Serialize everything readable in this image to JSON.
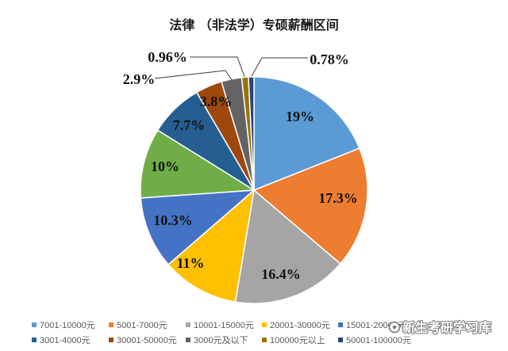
{
  "chart_data": {
    "type": "pie",
    "title": "法律 （非法学）专硕薪酬区间",
    "categories": [
      "7001-10000元",
      "5001-7000元",
      "10001-15000元",
      "20001-30000元",
      "15001-20000元",
      "",
      "3001-4000元",
      "30001-50000元",
      "3000元及以下",
      "100000元以上",
      "50001-100000元"
    ],
    "values": [
      19,
      17.3,
      16.4,
      11,
      10.3,
      10,
      7.7,
      3.8,
      2.9,
      0.96,
      0.78
    ],
    "data_labels": [
      "19%",
      "17.3%",
      "16.4%",
      "11%",
      "10.3%",
      "10%",
      "7.7%",
      "3.8%",
      "2.9%",
      "0.96%",
      "0.78%"
    ],
    "colors": [
      "#5B9BD5",
      "#ED7D31",
      "#A5A5A5",
      "#FFC000",
      "#4472C4",
      "#70AD47",
      "#255E91",
      "#9E480E",
      "#636363",
      "#997300",
      "#264478"
    ],
    "legend_position": "bottom",
    "start": "top, clockwise"
  },
  "watermark": "新生考研学习库"
}
